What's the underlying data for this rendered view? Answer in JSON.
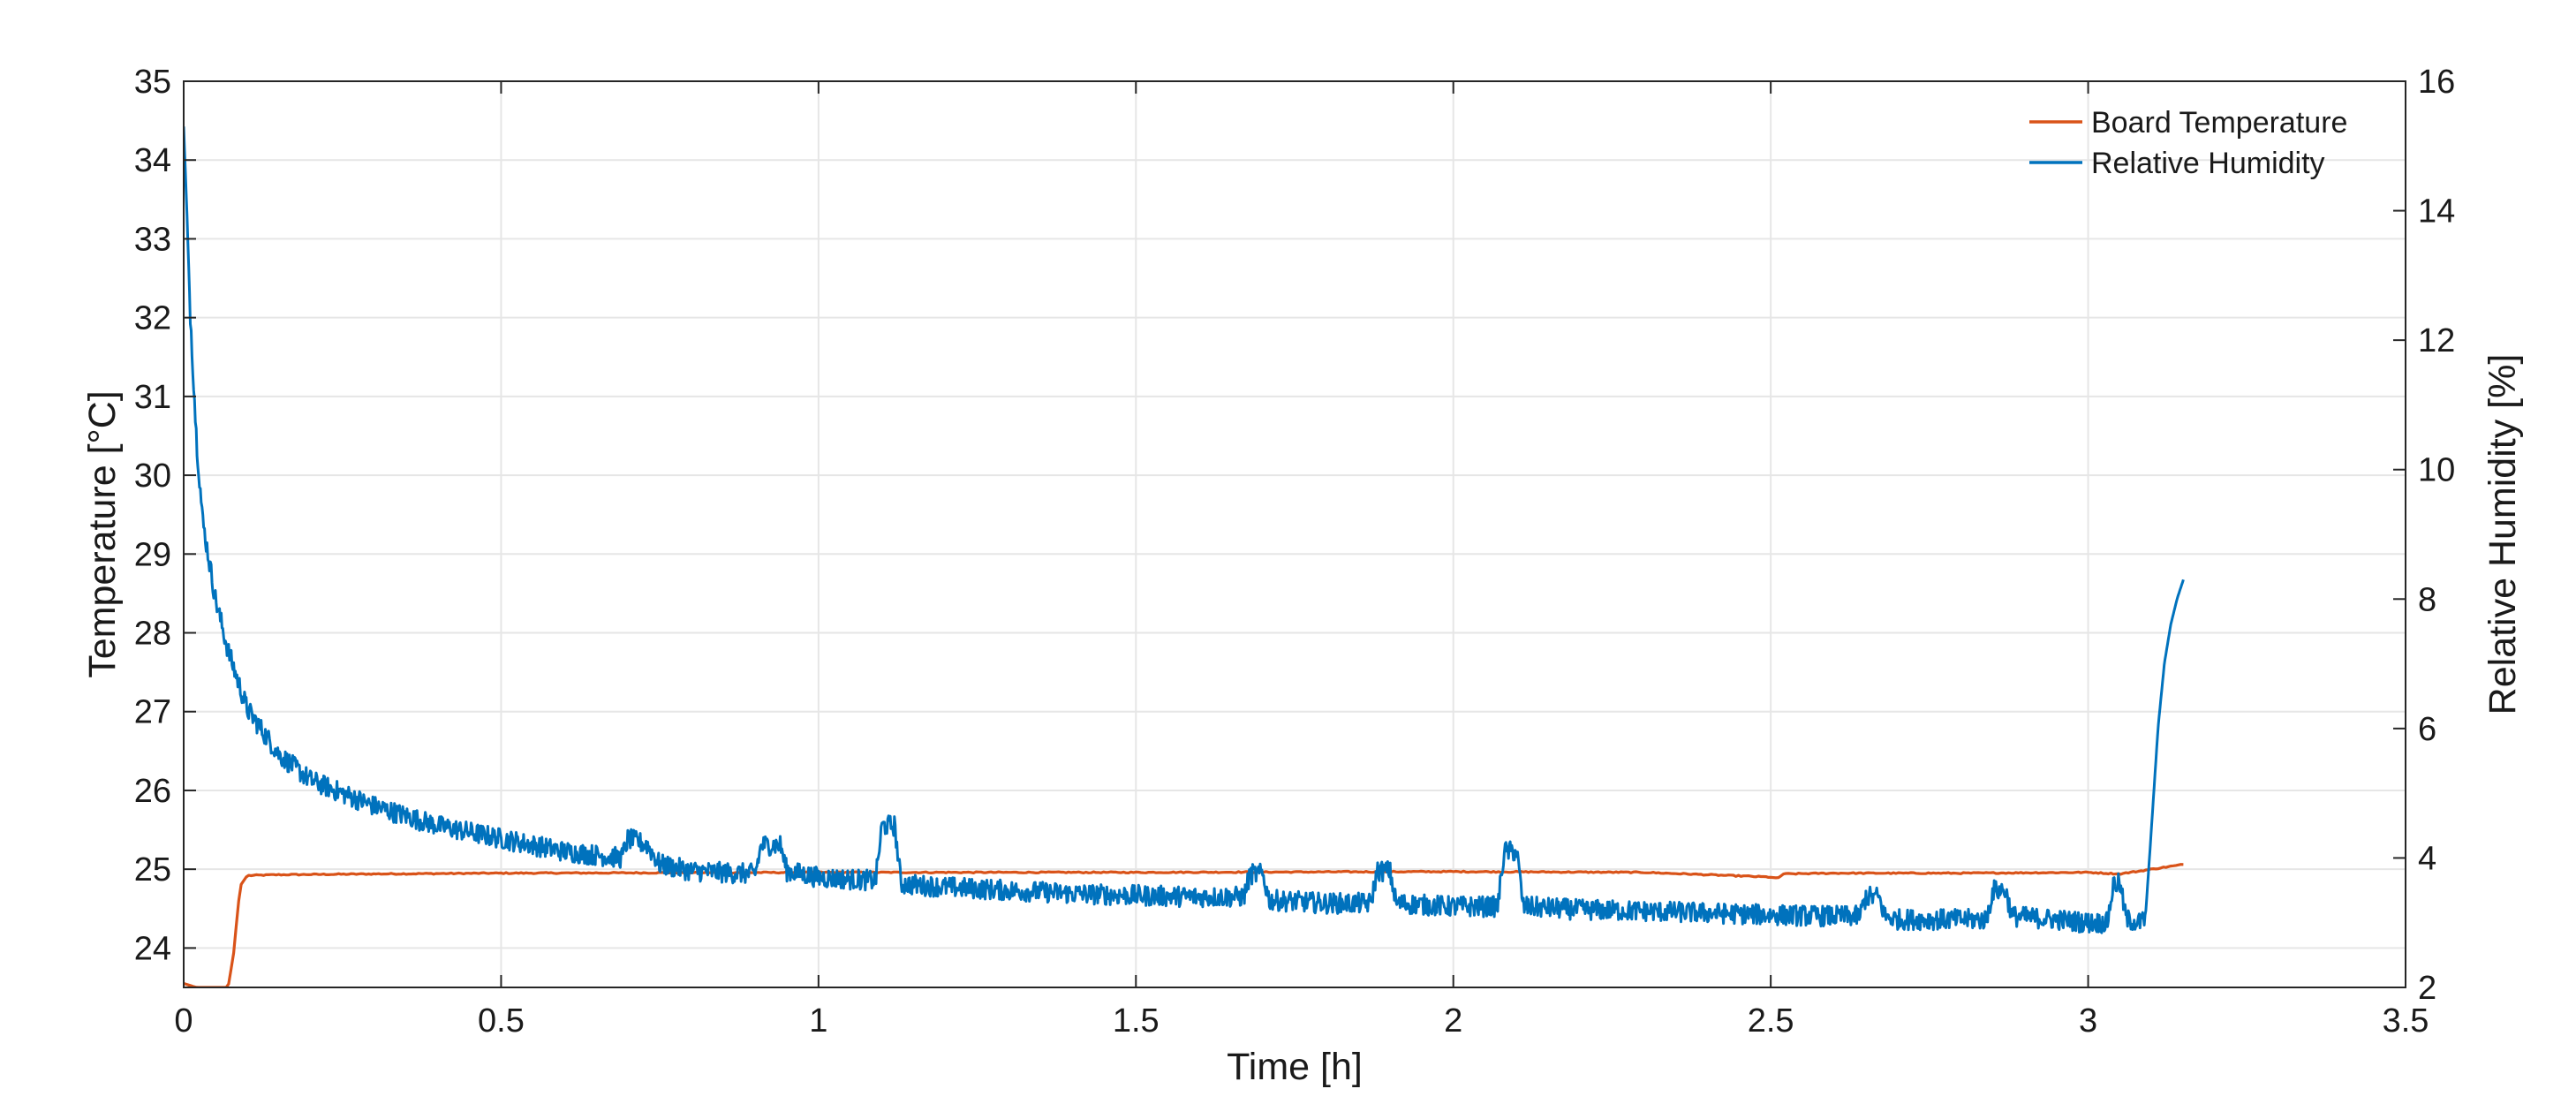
{
  "chart_data": {
    "type": "line",
    "title": "",
    "xlabel": "Time [h]",
    "ylabel_left": "Temperature [°C]",
    "ylabel_right": "Relative Humidity [%]",
    "xlim": [
      0,
      3.5
    ],
    "ylim_left": [
      23.5,
      35
    ],
    "ylim_right": [
      2,
      16
    ],
    "xticks": [
      0,
      0.5,
      1,
      1.5,
      2,
      2.5,
      3,
      3.5
    ],
    "xtick_labels": [
      "0",
      "0.5",
      "1",
      "1.5",
      "2",
      "2.5",
      "3",
      "3.5"
    ],
    "yticks_left": [
      24,
      25,
      26,
      27,
      28,
      29,
      30,
      31,
      32,
      33,
      34,
      35
    ],
    "ytick_labels_left": [
      "24",
      "25",
      "26",
      "27",
      "28",
      "29",
      "30",
      "31",
      "32",
      "33",
      "34",
      "35"
    ],
    "yticks_right": [
      2,
      4,
      6,
      8,
      10,
      12,
      14,
      16
    ],
    "ytick_labels_right": [
      "2",
      "4",
      "6",
      "8",
      "10",
      "12",
      "14",
      "16"
    ],
    "grid": true,
    "legend_position": "top-right",
    "series": [
      {
        "name": "Board Temperature",
        "axis": "left",
        "color": "#D95319",
        "x": [
          0,
          0.02,
          0.07,
          0.08,
          0.085,
          0.09,
          0.1,
          0.15,
          0.3,
          0.5,
          1,
          1.5,
          2,
          2.3,
          2.5,
          2.51,
          2.52,
          2.6,
          2.8,
          3,
          3.05,
          3.1,
          3.15
        ],
        "y": [
          23.55,
          23.5,
          23.5,
          24.0,
          24.5,
          24.8,
          24.92,
          24.93,
          24.94,
          24.95,
          24.96,
          24.96,
          24.97,
          24.96,
          24.9,
          24.88,
          24.94,
          24.95,
          24.95,
          24.96,
          24.94,
          25.0,
          25.06
        ]
      },
      {
        "name": "Relative Humidity",
        "axis": "right",
        "color": "#0072BD",
        "x": [
          0,
          0.005,
          0.01,
          0.02,
          0.03,
          0.05,
          0.07,
          0.1,
          0.15,
          0.2,
          0.3,
          0.4,
          0.5,
          0.6,
          0.69,
          0.7,
          0.73,
          0.75,
          0.8,
          0.9,
          0.91,
          0.94,
          0.95,
          1.0,
          1.09,
          1.1,
          1.12,
          1.13,
          1.2,
          1.3,
          1.4,
          1.5,
          1.6,
          1.67,
          1.68,
          1.7,
          1.71,
          1.8,
          1.87,
          1.88,
          1.9,
          1.91,
          2.0,
          2.07,
          2.08,
          2.1,
          2.11,
          2.2,
          2.3,
          2.4,
          2.5,
          2.6,
          2.64,
          2.65,
          2.67,
          2.68,
          2.7,
          2.8,
          2.84,
          2.85,
          2.87,
          2.88,
          2.95,
          3.0,
          3.03,
          3.04,
          3.05,
          3.06,
          3.08,
          3.09,
          3.1,
          3.11,
          3.12,
          3.13,
          3.14,
          3.15
        ],
        "y": [
          15.3,
          14.0,
          12.5,
          10.5,
          9.2,
          8.0,
          7.2,
          6.3,
          5.6,
          5.2,
          4.8,
          4.5,
          4.3,
          4.1,
          4.0,
          4.3,
          4.2,
          3.9,
          3.8,
          3.75,
          4.2,
          4.2,
          3.8,
          3.7,
          3.65,
          4.5,
          4.5,
          3.6,
          3.55,
          3.5,
          3.45,
          3.42,
          3.4,
          3.4,
          3.75,
          3.75,
          3.35,
          3.3,
          3.3,
          3.8,
          3.8,
          3.3,
          3.25,
          3.25,
          4.1,
          4.1,
          3.25,
          3.2,
          3.18,
          3.15,
          3.12,
          3.1,
          3.1,
          3.4,
          3.4,
          3.1,
          3.05,
          3.05,
          3.05,
          3.5,
          3.5,
          3.1,
          3.05,
          3.0,
          3.0,
          3.6,
          3.6,
          3.05,
          3.0,
          3.05,
          4.5,
          6.0,
          7.0,
          7.6,
          8.0,
          8.3
        ]
      }
    ]
  }
}
